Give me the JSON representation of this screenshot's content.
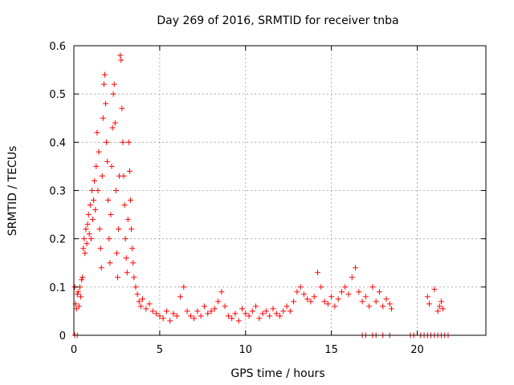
{
  "chart_data": {
    "type": "scatter",
    "title": "Day 269 of 2016, SRMTID for receiver tnba",
    "xlabel": "GPS time / hours",
    "ylabel": "SRMTID / TECUs",
    "xlim": [
      0,
      24
    ],
    "ylim": [
      0,
      0.6
    ],
    "x_ticks": [
      0,
      5,
      10,
      15,
      20
    ],
    "x_tick_labels": [
      "0",
      "5",
      "10",
      "15",
      "20"
    ],
    "y_ticks": [
      0,
      0.1,
      0.2,
      0.3,
      0.4,
      0.5,
      0.6
    ],
    "y_tick_labels": [
      "0",
      "0.1",
      "0.2",
      "0.3",
      "0.4",
      "0.5",
      "0.6"
    ],
    "grid": true,
    "marker": "+",
    "marker_color": "#ff0000",
    "series": [
      {
        "name": "SRMTID",
        "points": [
          [
            0.05,
            0.1
          ],
          [
            0.1,
            0.065
          ],
          [
            0.15,
            0.055
          ],
          [
            0.2,
            0.085
          ],
          [
            0.25,
            0.09
          ],
          [
            0.3,
            0.06
          ],
          [
            0.35,
            0.1
          ],
          [
            0.4,
            0.08
          ],
          [
            0.45,
            0.115
          ],
          [
            0.5,
            0.12
          ],
          [
            0.55,
            0.18
          ],
          [
            0.6,
            0.2
          ],
          [
            0.65,
            0.17
          ],
          [
            0.7,
            0.22
          ],
          [
            0.75,
            0.19
          ],
          [
            0.8,
            0.23
          ],
          [
            0.85,
            0.25
          ],
          [
            0.9,
            0.21
          ],
          [
            0.95,
            0.27
          ],
          [
            1.0,
            0.2
          ],
          [
            1.05,
            0.3
          ],
          [
            1.1,
            0.24
          ],
          [
            1.15,
            0.28
          ],
          [
            1.2,
            0.32
          ],
          [
            1.25,
            0.26
          ],
          [
            1.3,
            0.35
          ],
          [
            1.35,
            0.42
          ],
          [
            1.4,
            0.3
          ],
          [
            1.45,
            0.38
          ],
          [
            1.5,
            0.22
          ],
          [
            1.55,
            0.18
          ],
          [
            1.6,
            0.14
          ],
          [
            1.65,
            0.33
          ],
          [
            1.7,
            0.45
          ],
          [
            1.75,
            0.52
          ],
          [
            1.8,
            0.54
          ],
          [
            1.85,
            0.48
          ],
          [
            1.9,
            0.4
          ],
          [
            1.95,
            0.36
          ],
          [
            2.0,
            0.28
          ],
          [
            2.05,
            0.2
          ],
          [
            2.1,
            0.15
          ],
          [
            2.15,
            0.25
          ],
          [
            2.2,
            0.35
          ],
          [
            2.25,
            0.43
          ],
          [
            2.3,
            0.5
          ],
          [
            2.35,
            0.52
          ],
          [
            2.4,
            0.44
          ],
          [
            2.45,
            0.3
          ],
          [
            2.5,
            0.17
          ],
          [
            2.55,
            0.12
          ],
          [
            2.6,
            0.22
          ],
          [
            2.65,
            0.33
          ],
          [
            2.7,
            0.58
          ],
          [
            2.75,
            0.57
          ],
          [
            2.8,
            0.47
          ],
          [
            2.85,
            0.4
          ],
          [
            2.9,
            0.33
          ],
          [
            2.95,
            0.27
          ],
          [
            3.0,
            0.2
          ],
          [
            3.05,
            0.16
          ],
          [
            3.1,
            0.13
          ],
          [
            3.15,
            0.24
          ],
          [
            3.2,
            0.4
          ],
          [
            3.25,
            0.34
          ],
          [
            3.3,
            0.28
          ],
          [
            3.35,
            0.22
          ],
          [
            3.4,
            0.18
          ],
          [
            3.45,
            0.15
          ],
          [
            3.5,
            0.12
          ],
          [
            3.6,
            0.1
          ],
          [
            3.7,
            0.085
          ],
          [
            3.8,
            0.07
          ],
          [
            3.9,
            0.06
          ],
          [
            4.0,
            0.075
          ],
          [
            4.2,
            0.055
          ],
          [
            4.4,
            0.065
          ],
          [
            4.6,
            0.05
          ],
          [
            4.8,
            0.045
          ],
          [
            5.0,
            0.04
          ],
          [
            5.2,
            0.035
          ],
          [
            5.4,
            0.05
          ],
          [
            5.6,
            0.03
          ],
          [
            5.8,
            0.045
          ],
          [
            6.0,
            0.04
          ],
          [
            6.2,
            0.08
          ],
          [
            6.4,
            0.1
          ],
          [
            6.6,
            0.05
          ],
          [
            6.8,
            0.04
          ],
          [
            7.0,
            0.035
          ],
          [
            7.2,
            0.05
          ],
          [
            7.4,
            0.04
          ],
          [
            7.6,
            0.06
          ],
          [
            7.8,
            0.045
          ],
          [
            8.0,
            0.05
          ],
          [
            8.2,
            0.055
          ],
          [
            8.4,
            0.07
          ],
          [
            8.6,
            0.09
          ],
          [
            8.8,
            0.06
          ],
          [
            9.0,
            0.04
          ],
          [
            9.2,
            0.035
          ],
          [
            9.4,
            0.045
          ],
          [
            9.6,
            0.03
          ],
          [
            9.8,
            0.055
          ],
          [
            10.0,
            0.045
          ],
          [
            10.2,
            0.04
          ],
          [
            10.4,
            0.05
          ],
          [
            10.6,
            0.06
          ],
          [
            10.8,
            0.035
          ],
          [
            11.0,
            0.045
          ],
          [
            11.2,
            0.05
          ],
          [
            11.4,
            0.04
          ],
          [
            11.6,
            0.055
          ],
          [
            11.8,
            0.045
          ],
          [
            12.0,
            0.04
          ],
          [
            12.2,
            0.05
          ],
          [
            12.4,
            0.06
          ],
          [
            12.6,
            0.05
          ],
          [
            12.8,
            0.07
          ],
          [
            13.0,
            0.09
          ],
          [
            13.2,
            0.1
          ],
          [
            13.4,
            0.085
          ],
          [
            13.6,
            0.075
          ],
          [
            13.8,
            0.07
          ],
          [
            14.0,
            0.08
          ],
          [
            14.2,
            0.13
          ],
          [
            14.4,
            0.1
          ],
          [
            14.6,
            0.07
          ],
          [
            14.8,
            0.065
          ],
          [
            15.0,
            0.08
          ],
          [
            15.2,
            0.06
          ],
          [
            15.4,
            0.075
          ],
          [
            15.6,
            0.09
          ],
          [
            15.8,
            0.1
          ],
          [
            16.0,
            0.085
          ],
          [
            16.2,
            0.12
          ],
          [
            16.4,
            0.14
          ],
          [
            16.6,
            0.09
          ],
          [
            16.8,
            0.07
          ],
          [
            17.0,
            0.08
          ],
          [
            17.2,
            0.06
          ],
          [
            17.4,
            0.1
          ],
          [
            17.6,
            0.07
          ],
          [
            17.8,
            0.09
          ],
          [
            18.0,
            0.06
          ],
          [
            18.2,
            0.075
          ],
          [
            18.4,
            0.065
          ],
          [
            18.5,
            0.055
          ],
          [
            20.6,
            0.08
          ],
          [
            20.7,
            0.065
          ],
          [
            21.0,
            0.095
          ],
          [
            21.2,
            0.05
          ],
          [
            21.3,
            0.06
          ],
          [
            21.4,
            0.07
          ],
          [
            21.5,
            0.055
          ],
          [
            0.05,
            0.0
          ],
          [
            0.2,
            0.0
          ],
          [
            16.8,
            0.0
          ],
          [
            17.0,
            0.0
          ],
          [
            17.4,
            0.0
          ],
          [
            17.6,
            0.0
          ],
          [
            18.0,
            0.0
          ],
          [
            18.4,
            0.0
          ],
          [
            19.6,
            0.0
          ],
          [
            19.8,
            0.0
          ],
          [
            20.2,
            0.0
          ],
          [
            20.4,
            0.0
          ],
          [
            20.6,
            0.0
          ],
          [
            20.8,
            0.0
          ],
          [
            21.0,
            0.0
          ],
          [
            21.2,
            0.0
          ],
          [
            21.4,
            0.0
          ],
          [
            21.6,
            0.0
          ],
          [
            21.8,
            0.0
          ]
        ]
      }
    ]
  }
}
